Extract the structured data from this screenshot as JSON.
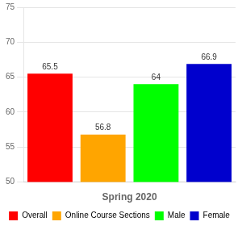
{
  "chart_data": {
    "type": "bar",
    "categories": [
      "Overall",
      "Online Course Sections",
      "Male",
      "Female"
    ],
    "values": [
      65.5,
      56.8,
      64,
      66.9
    ],
    "colors": [
      "#ff0000",
      "#ffa500",
      "#00ff00",
      "#0000cd"
    ],
    "xlabel": "Spring 2020",
    "ylim": [
      50,
      75
    ],
    "yticks": [
      50,
      55,
      60,
      65,
      70,
      75
    ],
    "grid": true,
    "legend": "bottom",
    "data_labels": true,
    "tick_labels": "y"
  }
}
